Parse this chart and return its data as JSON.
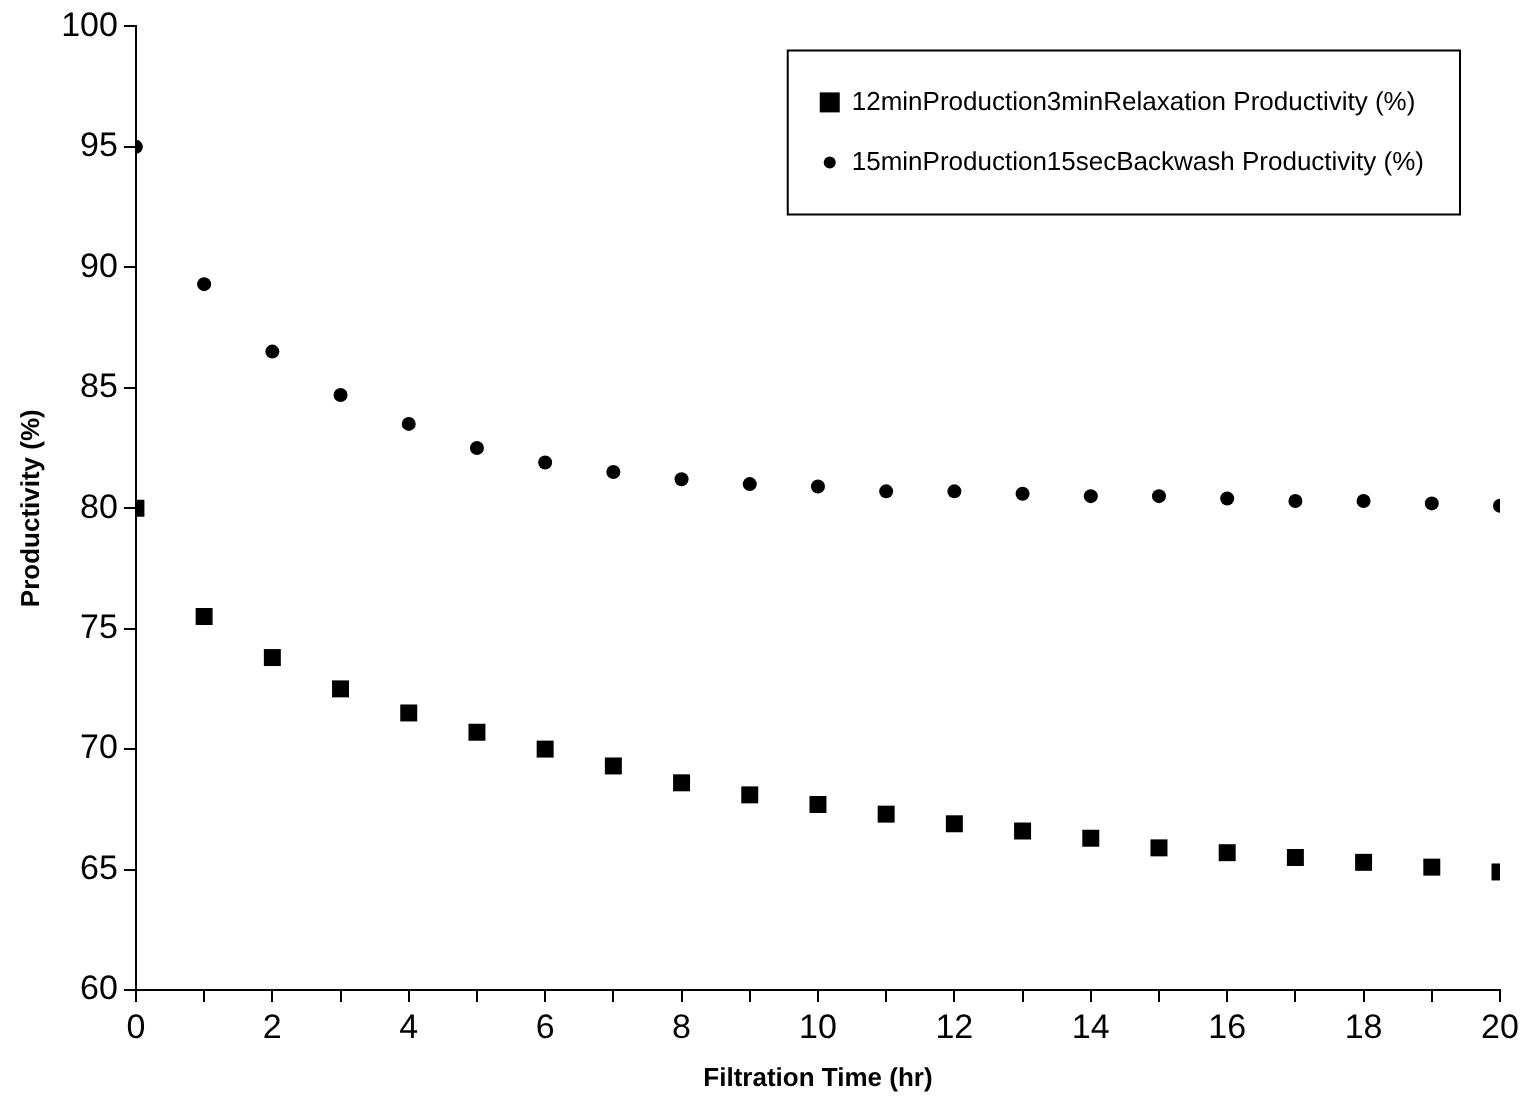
{
  "chart_data": {
    "type": "scatter",
    "xlabel": "Filtration Time (hr)",
    "ylabel": "Productivity (%)",
    "x": [
      0,
      1,
      2,
      3,
      4,
      5,
      6,
      7,
      8,
      9,
      10,
      11,
      12,
      13,
      14,
      15,
      16,
      17,
      18,
      19,
      20
    ],
    "series": [
      {
        "name": "12minProduction3minRelaxation Productivity (%)",
        "color": "#000000",
        "marker": "square",
        "values": [
          80.0,
          75.5,
          73.8,
          72.5,
          71.5,
          70.7,
          70.0,
          69.3,
          68.6,
          68.1,
          67.7,
          67.3,
          66.9,
          66.6,
          66.3,
          65.9,
          65.7,
          65.5,
          65.3,
          65.1,
          64.9
        ]
      },
      {
        "name": "15minProduction15secBackwash Productivity (%)",
        "color": "#000000",
        "marker": "circle",
        "values": [
          95.0,
          89.3,
          86.5,
          84.7,
          83.5,
          82.5,
          81.9,
          81.5,
          81.2,
          81.0,
          80.9,
          80.7,
          80.7,
          80.6,
          80.5,
          80.5,
          80.4,
          80.3,
          80.3,
          80.2,
          80.1
        ]
      }
    ],
    "xlim": [
      0,
      20
    ],
    "xticks": [
      0,
      {
        "value": 1,
        "label": null
      },
      2,
      {
        "value": 3,
        "label": null
      },
      4,
      {
        "value": 5,
        "label": null
      },
      6,
      {
        "value": 7,
        "label": null
      },
      8,
      {
        "value": 9,
        "label": null
      },
      10,
      {
        "value": 11,
        "label": null
      },
      12,
      {
        "value": 13,
        "label": null
      },
      14,
      {
        "value": 15,
        "label": null
      },
      16,
      {
        "value": 17,
        "label": null
      },
      18,
      {
        "value": 19,
        "label": null
      },
      20
    ],
    "ylim": [
      60,
      100
    ],
    "yticks": [
      60,
      65,
      70,
      75,
      80,
      85,
      90,
      95,
      100
    ],
    "grid": false,
    "legend": "top right"
  }
}
